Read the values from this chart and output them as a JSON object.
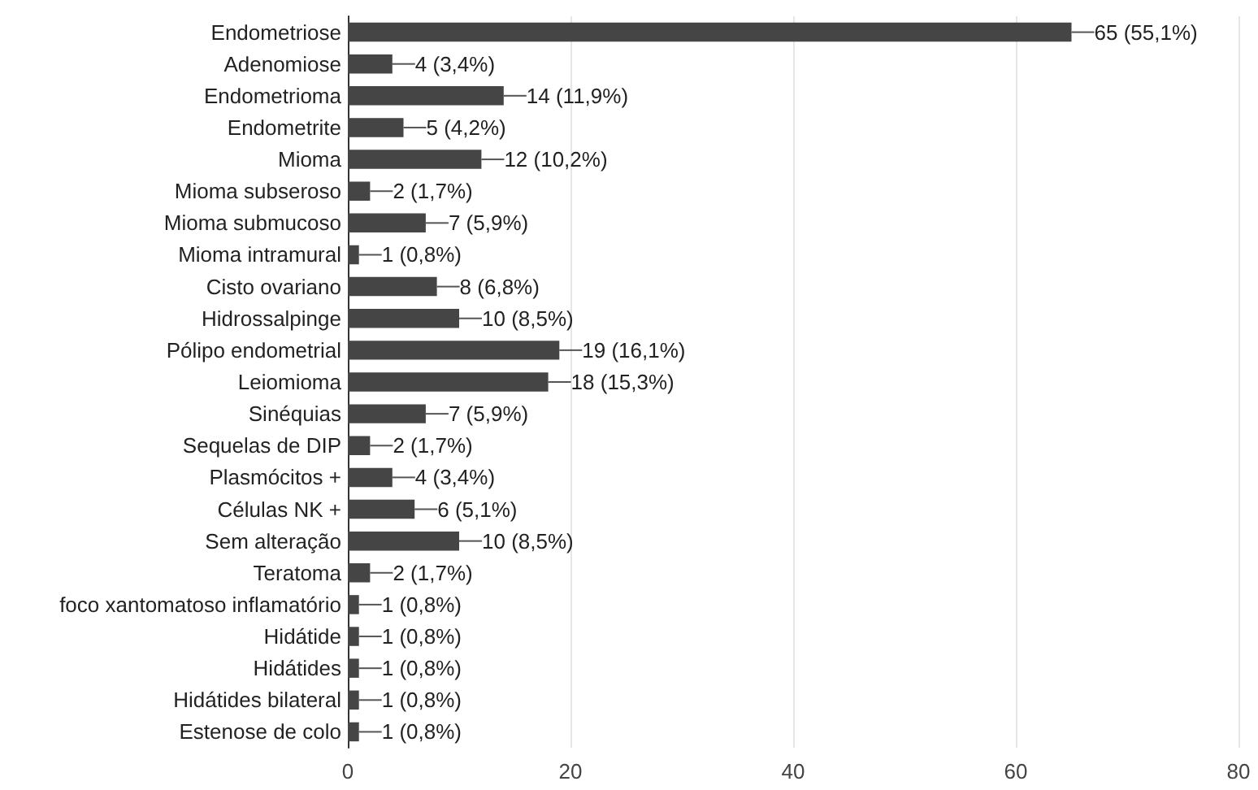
{
  "chart_data": {
    "type": "bar",
    "orientation": "horizontal",
    "categories": [
      "Endometriose",
      "Adenomiose",
      "Endometrioma",
      "Endometrite",
      "Mioma",
      "Mioma subseroso",
      "Mioma submucoso",
      "Mioma intramural",
      "Cisto ovariano",
      "Hidrossalpinge",
      "Pólipo endometrial",
      "Leiomioma",
      "Sinéquias",
      "Sequelas de DIP",
      "Plasmócitos +",
      "Células NK +",
      "Sem alteração",
      "Teratoma",
      "foco xantomatoso inflamatório",
      "Hidátide",
      "Hidátides",
      "Hidátides bilateral",
      "Estenose de colo"
    ],
    "values": [
      65,
      4,
      14,
      5,
      12,
      2,
      7,
      1,
      8,
      10,
      19,
      18,
      7,
      2,
      4,
      6,
      10,
      2,
      1,
      1,
      1,
      1,
      1
    ],
    "value_labels": [
      "65 (55,1%)",
      "4 (3,4%)",
      "14 (11,9%)",
      "5 (4,2%)",
      "12 (10,2%)",
      "2 (1,7%)",
      "7 (5,9%)",
      "1 (0,8%)",
      "8 (6,8%)",
      "10 (8,5%)",
      "19 (16,1%)",
      "18 (15,3%)",
      "7 (5,9%)",
      "2 (1,7%)",
      "4 (3,4%)",
      "6 (5,1%)",
      "10 (8,5%)",
      "2 (1,7%)",
      "1 (0,8%)",
      "1 (0,8%)",
      "1 (0,8%)",
      "1 (0,8%)",
      "1 (0,8%)"
    ],
    "color": "#454545",
    "xlim": [
      0,
      80
    ],
    "xticks": [
      0,
      20,
      40,
      60,
      80
    ],
    "grid": "x"
  }
}
